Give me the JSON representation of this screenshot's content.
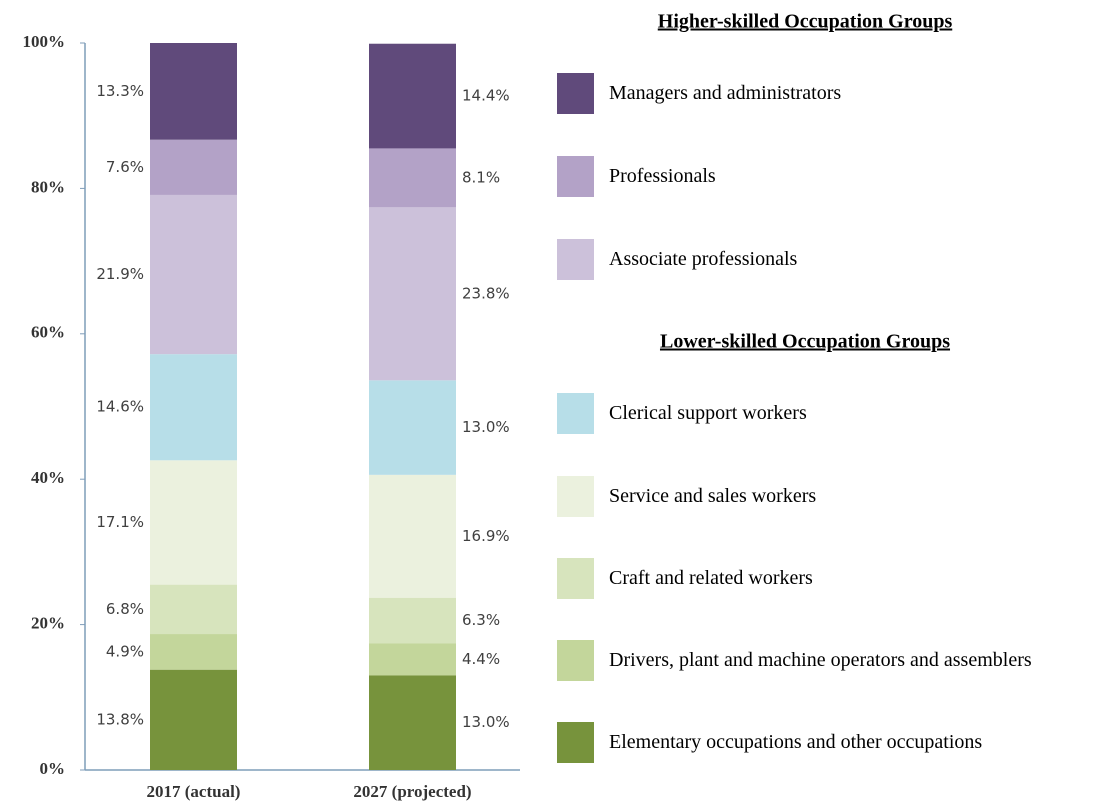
{
  "chart_data": {
    "type": "stacked_bar",
    "categories": [
      "2017 (actual)",
      "2027 (projected)"
    ],
    "ylim": [
      0,
      100
    ],
    "yticks": [
      {
        "value": 0,
        "label": "0%"
      },
      {
        "value": 20,
        "label": "20%"
      },
      {
        "value": 40,
        "label": "40%"
      },
      {
        "value": 60,
        "label": "60%"
      },
      {
        "value": 80,
        "label": "80%"
      },
      {
        "value": 100,
        "label": "100%"
      }
    ],
    "series_groups": [
      {
        "title": "Higher-skilled Occupation Groups",
        "series": [
          {
            "name": "Managers and administrators",
            "color": "#604a7b",
            "values": [
              13.3,
              14.4
            ],
            "value_labels": [
              "13.3%",
              "14.4%"
            ]
          },
          {
            "name": "Professionals",
            "color": "#b3a2c7",
            "values": [
              7.6,
              8.1
            ],
            "value_labels": [
              "7.6%",
              "8.1%"
            ]
          },
          {
            "name": "Associate professionals",
            "color": "#ccc1da",
            "values": [
              21.9,
              23.8
            ],
            "value_labels": [
              "21.9%",
              "23.8%"
            ]
          }
        ]
      },
      {
        "title": "Lower-skilled Occupation Groups",
        "series": [
          {
            "name": "Clerical support workers",
            "color": "#b7dee8",
            "values": [
              14.6,
              13.0
            ],
            "value_labels": [
              "14.6%",
              "13.0%"
            ]
          },
          {
            "name": "Service and sales workers",
            "color": "#ebf1de",
            "values": [
              17.1,
              16.9
            ],
            "value_labels": [
              "17.1%",
              "16.9%"
            ]
          },
          {
            "name": "Craft and related workers",
            "color": "#d7e4bd",
            "values": [
              6.8,
              6.3
            ],
            "value_labels": [
              "6.8%",
              "6.3%"
            ]
          },
          {
            "name": "Drivers, plant and machine operators and assemblers",
            "color": "#c3d69b",
            "values": [
              4.9,
              4.4
            ],
            "value_labels": [
              "4.9%",
              "4.4%"
            ]
          },
          {
            "name": "Elementary occupations and other occupations",
            "color": "#77933c",
            "values": [
              13.8,
              13.0
            ],
            "value_labels": [
              "13.8%",
              "13.0%"
            ]
          }
        ]
      }
    ]
  }
}
